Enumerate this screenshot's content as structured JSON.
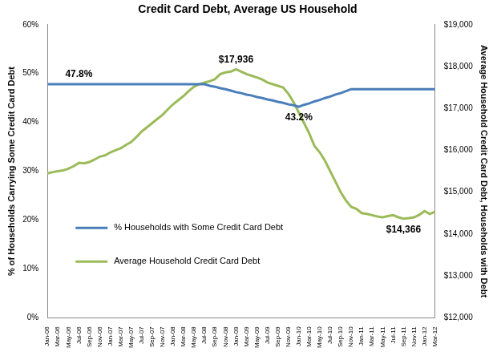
{
  "chart_data": {
    "type": "line",
    "title": "Credit Card Debt, Average US Household",
    "categories": [
      "Jan-06",
      null,
      "Mar-06",
      null,
      "May-06",
      null,
      "Jul-06",
      null,
      "Sep-06",
      null,
      "Nov-06",
      null,
      "Jan-07",
      null,
      "Mar-07",
      null,
      "May-07",
      null,
      "Jul-07",
      null,
      "Sep-07",
      null,
      "Nov-07",
      null,
      "Jan-08",
      null,
      "Mar-08",
      null,
      "May-08",
      null,
      "Jul-08",
      null,
      "Sep-08",
      null,
      "Nov-08",
      null,
      "Jan-09",
      null,
      "Mar-09",
      null,
      "May-09",
      null,
      "Jul-09",
      null,
      "Sep-09",
      null,
      "Nov-09",
      null,
      "Jan-10",
      null,
      "Mar-10",
      null,
      "May-10",
      null,
      "Jul-10",
      null,
      "Sep-10",
      null,
      "Nov-10",
      null,
      "Jan-11",
      null,
      "Mar-11",
      null,
      "May-11",
      null,
      "Jul-11",
      null,
      "Sep-11",
      null,
      "Nov-11",
      null,
      "Jan-12",
      null,
      "Mar-12"
    ],
    "series": [
      {
        "name": "% Households with Some Credit Card Debt",
        "color": "#4a7ebb",
        "values": [
          47.8,
          47.8,
          47.8,
          47.8,
          47.8,
          47.8,
          47.8,
          47.8,
          47.8,
          47.8,
          47.8,
          47.8,
          47.8,
          47.8,
          47.8,
          47.8,
          47.8,
          47.8,
          47.8,
          47.8,
          47.8,
          47.8,
          47.8,
          47.8,
          47.8,
          47.8,
          47.8,
          47.8,
          47.8,
          47.8,
          47.8,
          47.5,
          47.3,
          47.0,
          46.8,
          46.5,
          46.2,
          46.0,
          45.7,
          45.5,
          45.2,
          45.0,
          44.7,
          44.5,
          44.2,
          44.0,
          43.7,
          43.5,
          43.2,
          43.6,
          43.9,
          44.3,
          44.6,
          45.0,
          45.3,
          45.7,
          46.0,
          46.4,
          46.8,
          46.8,
          46.8,
          46.8,
          46.8,
          46.8,
          46.8,
          46.8,
          46.8,
          46.8,
          46.8,
          46.8,
          46.8,
          46.8,
          46.8,
          46.8,
          46.8
        ]
      },
      {
        "name": "Average Household Credit Card Debt",
        "color": "#9bbb59",
        "axis": "y2",
        "values": [
          15450,
          15480,
          15500,
          15520,
          15560,
          15620,
          15700,
          15690,
          15720,
          15780,
          15850,
          15880,
          15950,
          16000,
          16050,
          16130,
          16200,
          16320,
          16450,
          16550,
          16650,
          16750,
          16850,
          16980,
          17100,
          17200,
          17300,
          17420,
          17520,
          17580,
          17620,
          17650,
          17700,
          17820,
          17860,
          17880,
          17936,
          17880,
          17820,
          17780,
          17740,
          17690,
          17620,
          17580,
          17540,
          17500,
          17350,
          17150,
          16900,
          16650,
          16400,
          16100,
          15950,
          15750,
          15500,
          15250,
          15000,
          14800,
          14650,
          14600,
          14500,
          14480,
          14450,
          14420,
          14400,
          14430,
          14450,
          14400,
          14366,
          14380,
          14400,
          14460,
          14550,
          14480,
          14530
        ]
      }
    ],
    "y_label": "% of Households Carrying Some Credit Card Debt",
    "y2_label": "Average Household Credit Card Debt, Households with Debt",
    "ylim": [
      0,
      60
    ],
    "yticks": [
      {
        "value": 0,
        "label": "0%"
      },
      {
        "value": 10,
        "label": "10%"
      },
      {
        "value": 20,
        "label": "20%"
      },
      {
        "value": 30,
        "label": "30%"
      },
      {
        "value": 40,
        "label": "40%"
      },
      {
        "value": 50,
        "label": "50%"
      },
      {
        "value": 60,
        "label": "60%"
      }
    ],
    "y2lim": [
      12000,
      19000
    ],
    "y2ticks": [
      {
        "value": 12000,
        "label": "$12,000"
      },
      {
        "value": 13000,
        "label": "$13,000"
      },
      {
        "value": 14000,
        "label": "$14,000"
      },
      {
        "value": 15000,
        "label": "$15,000"
      },
      {
        "value": 16000,
        "label": "$16,000"
      },
      {
        "value": 17000,
        "label": "$17,000"
      },
      {
        "value": 18000,
        "label": "$18,000"
      },
      {
        "value": 19000,
        "label": "$19,000"
      }
    ],
    "grid": false,
    "legend": "lower left",
    "annotations": [
      {
        "text": "47.8%",
        "x": "Jul-06",
        "y": 47.8
      },
      {
        "text": "$17,936",
        "x": "Jan-09",
        "y": 17936,
        "axis": "y2"
      },
      {
        "text": "43.2%",
        "x": "Jan-10",
        "y": 43.2
      },
      {
        "text": "$14,366",
        "x": "Sep-11",
        "y": 14366,
        "axis": "y2"
      }
    ]
  }
}
